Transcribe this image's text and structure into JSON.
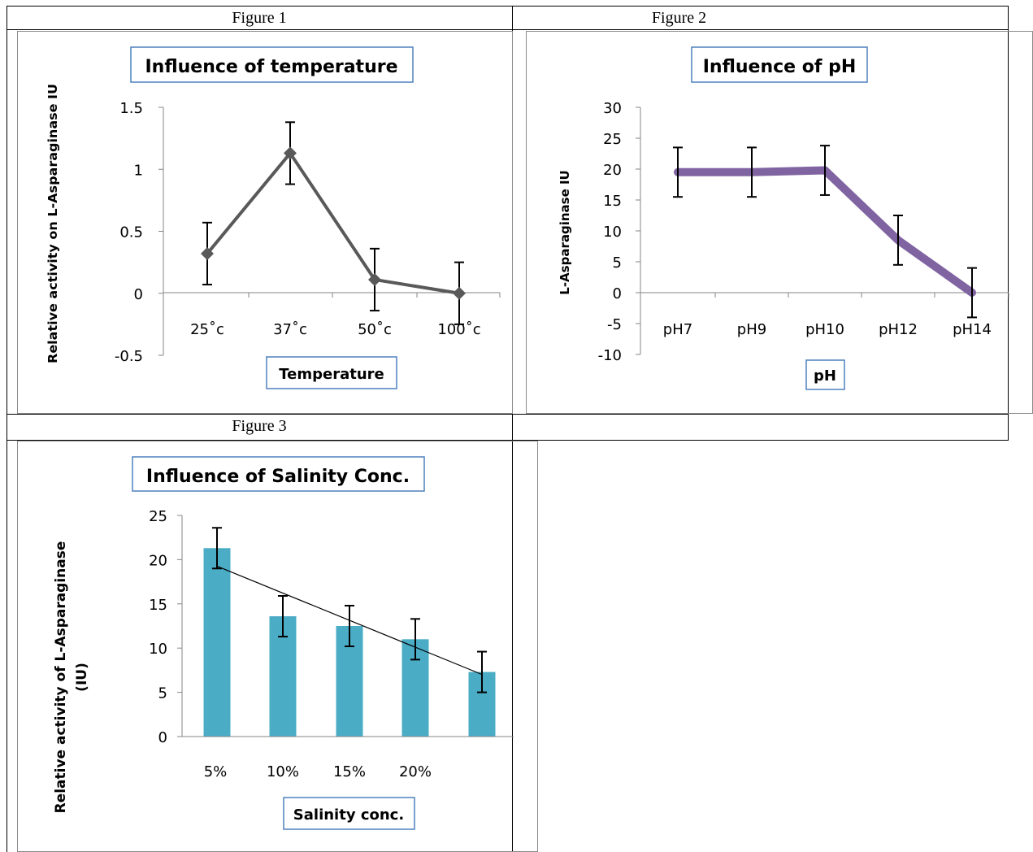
{
  "figures": [
    {
      "caption": "Figure 1"
    },
    {
      "caption": "Figure 2"
    },
    {
      "caption": "Figure 3"
    }
  ],
  "chart_data": [
    {
      "type": "line",
      "title": "Influence of temperature",
      "xlabel": "Temperature",
      "ylabel": "Relative activity on L-Asparaginase IU",
      "categories": [
        "25˚c",
        "37˚c",
        "50˚c",
        "100˚c"
      ],
      "values": [
        0.32,
        1.13,
        0.11,
        0.0
      ],
      "error": [
        0.25,
        0.25,
        0.25,
        0.25
      ],
      "ylim": [
        -0.5,
        1.5
      ],
      "yticks": [
        "1.5",
        "1",
        "0.5",
        "0",
        "-0.5"
      ],
      "color": "#595959",
      "marker": "diamond",
      "grid": false
    },
    {
      "type": "line",
      "title": "Influence of pH",
      "xlabel": "pH",
      "ylabel": "L-Asparaginase IU",
      "categories": [
        "pH7",
        "pH9",
        "pH10",
        "pH12",
        "pH14"
      ],
      "values": [
        19.5,
        19.5,
        19.8,
        8.5,
        0.0
      ],
      "error": [
        4.0,
        4.0,
        4.0,
        4.0,
        4.0
      ],
      "ylim": [
        -10,
        30
      ],
      "yticks": [
        "30",
        "25",
        "20",
        "15",
        "10",
        "5",
        "0",
        "-5",
        "-10"
      ],
      "color": "#8064a2",
      "grid": false
    },
    {
      "type": "bar",
      "title": "Influence of Salinity Conc.",
      "xlabel": "Salinity conc.",
      "ylabel": "Relative activity of L-Asparaginase (IU)",
      "categories": [
        "5%",
        "10%",
        "15%",
        "20%",
        ""
      ],
      "values": [
        21.3,
        13.6,
        12.5,
        11.0,
        7.3
      ],
      "error": [
        2.3,
        2.3,
        2.3,
        2.3,
        2.3
      ],
      "trendline": "linear",
      "ylim": [
        0,
        25
      ],
      "yticks": [
        "25",
        "20",
        "15",
        "10",
        "5",
        "0"
      ],
      "color": "#4bacc6",
      "grid": false
    }
  ]
}
